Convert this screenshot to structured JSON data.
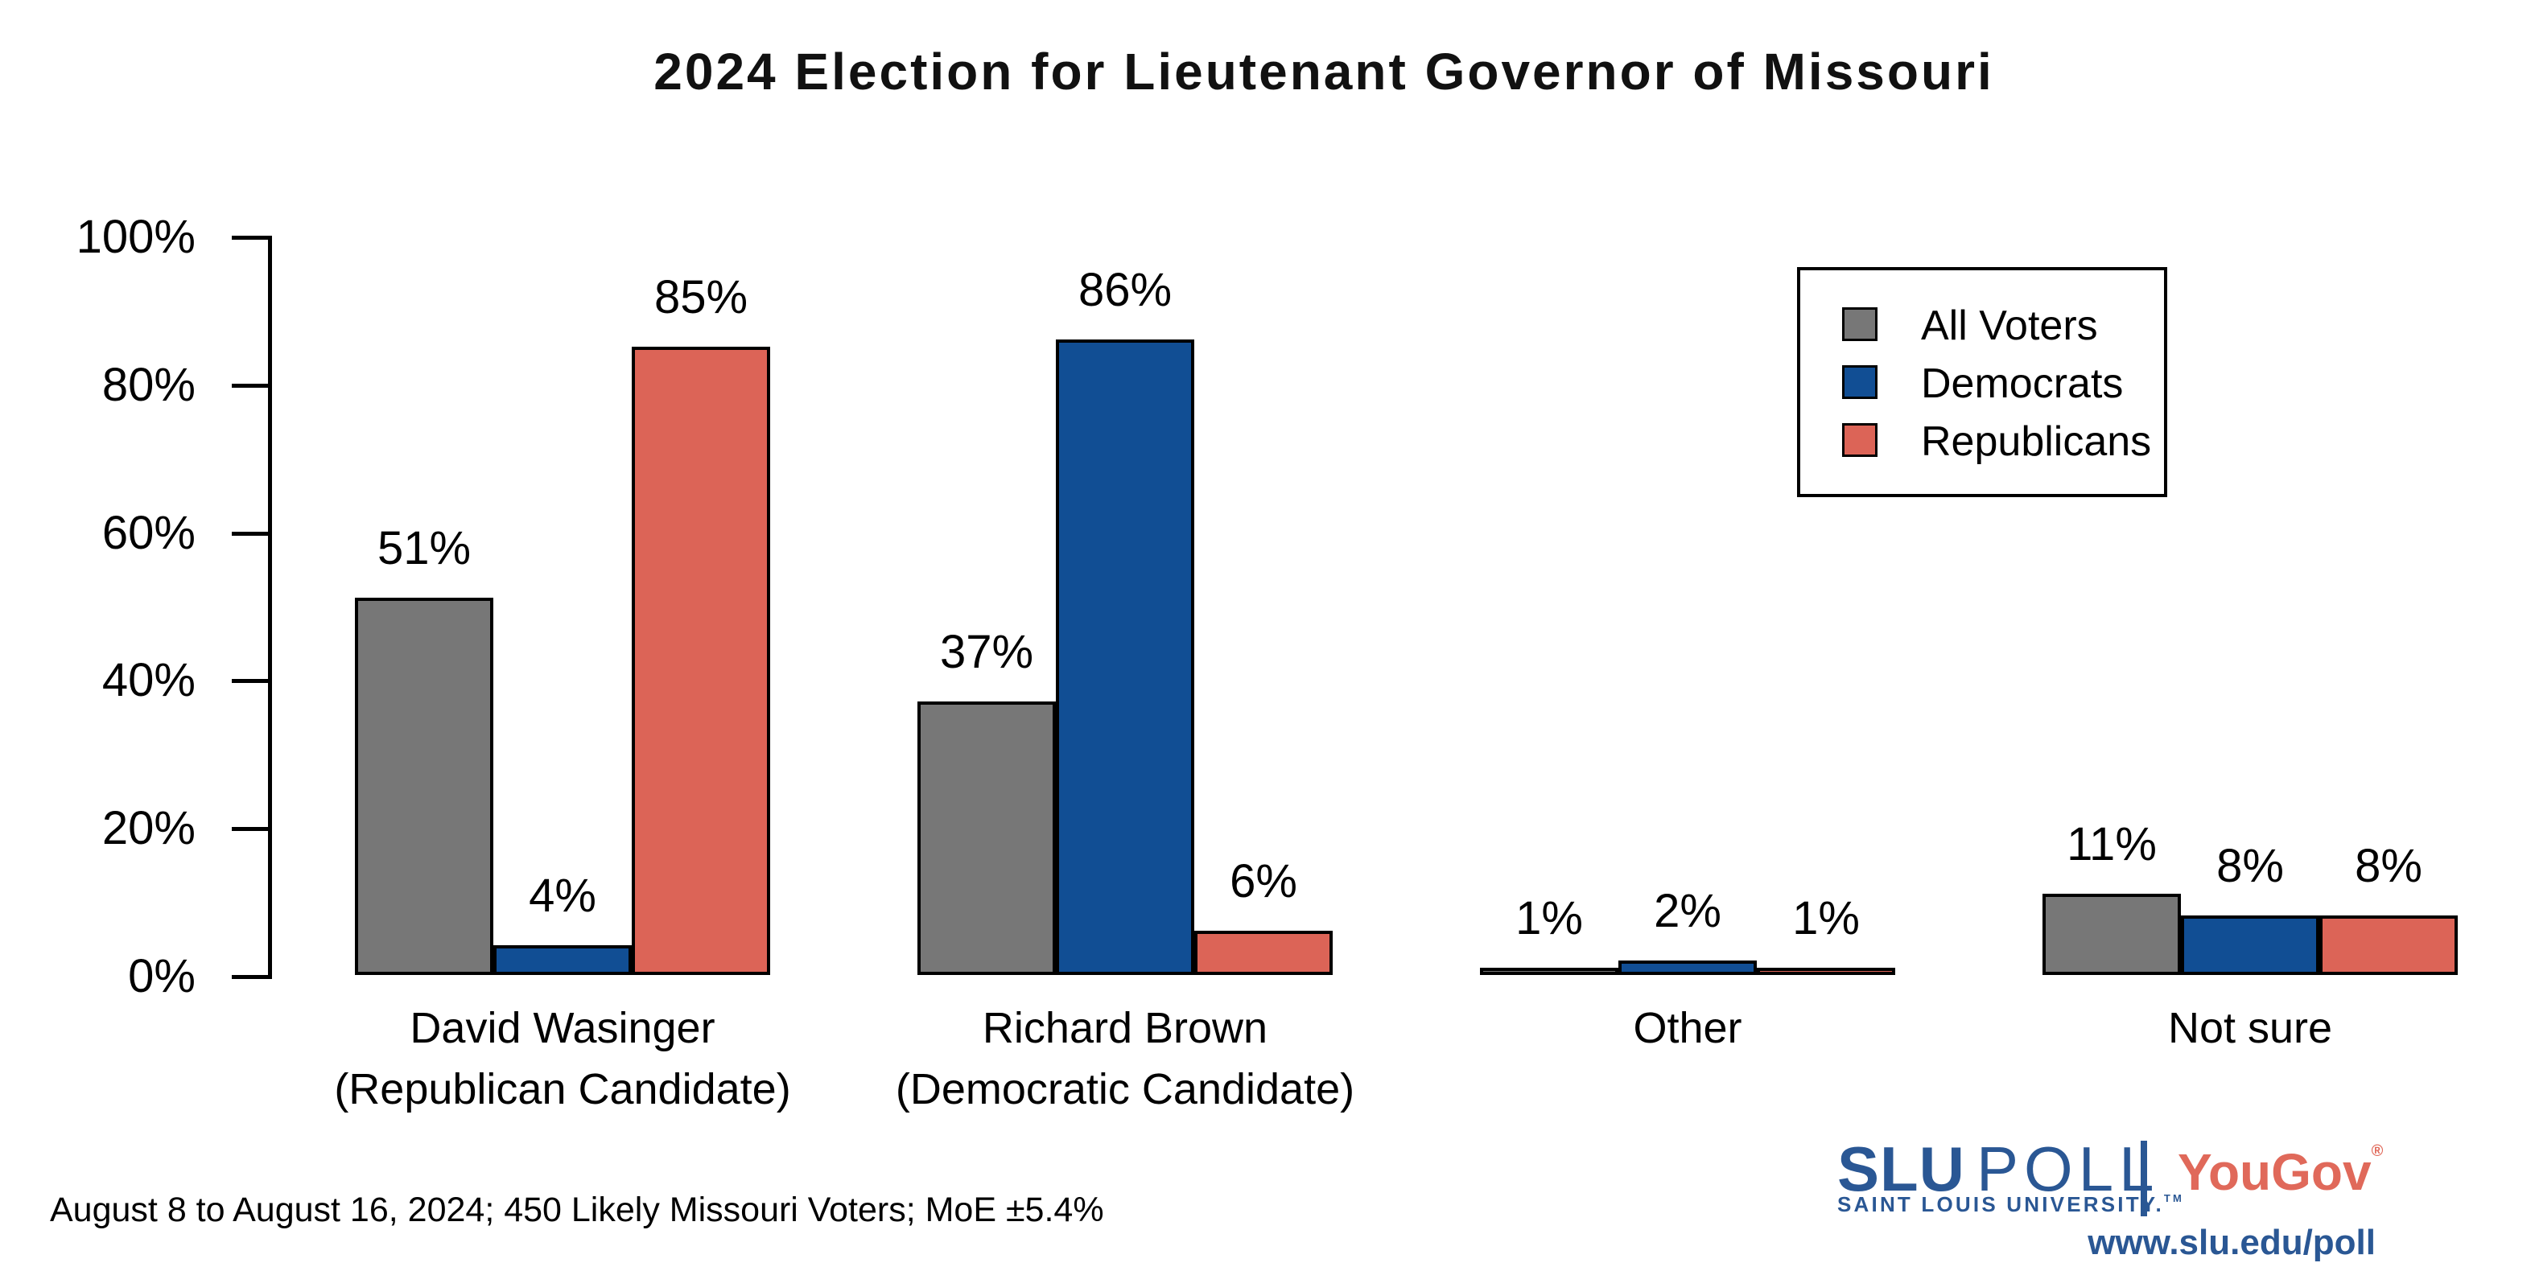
{
  "title": "2024 Election for Lieutenant Governor of Missouri",
  "footnote": "August 8 to August 16, 2024; 450 Likely Missouri Voters; MoE ±5.4%",
  "branding": {
    "slu": "SLU",
    "poll": "POLL",
    "subtitle": "SAINT LOUIS UNIVERSITY.",
    "trademark": "TM",
    "partner": "YouGov",
    "registered": "®",
    "url": "www.slu.edu/poll",
    "slu_blue": "#2A5794",
    "yougov_red": "#E0695A"
  },
  "legend": {
    "position": "top-right",
    "items": [
      {
        "label": "All Voters",
        "color": "#777777"
      },
      {
        "label": "Democrats",
        "color": "#114E94"
      },
      {
        "label": "Republicans",
        "color": "#DC6457"
      }
    ]
  },
  "chart_data": {
    "type": "bar",
    "title": "2024 Election for Lieutenant Governor of Missouri",
    "categories": [
      "David Wasinger (Republican Candidate)",
      "Richard Brown (Democratic Candidate)",
      "Other",
      "Not sure"
    ],
    "category_lines": [
      [
        "David Wasinger",
        "(Republican Candidate)"
      ],
      [
        "Richard Brown",
        "(Democratic Candidate)"
      ],
      [
        "Other"
      ],
      [
        "Not sure"
      ]
    ],
    "series": [
      {
        "name": "All Voters",
        "color": "#777777",
        "values": [
          51,
          37,
          1,
          11
        ]
      },
      {
        "name": "Democrats",
        "color": "#114E94",
        "values": [
          4,
          86,
          2,
          8
        ]
      },
      {
        "name": "Republicans",
        "color": "#DC6457",
        "values": [
          85,
          6,
          1,
          8
        ]
      }
    ],
    "value_labels": [
      [
        "51%",
        "37%",
        "1%",
        "11%"
      ],
      [
        "4%",
        "86%",
        "2%",
        "8%"
      ],
      [
        "85%",
        "6%",
        "1%",
        "8%"
      ]
    ],
    "value_suffix": "%",
    "xlabel": "",
    "ylabel": "",
    "ylim": [
      0,
      100
    ],
    "yticks": [
      {
        "value": 0,
        "label": "0%"
      },
      {
        "value": 20,
        "label": "20%"
      },
      {
        "value": 40,
        "label": "40%"
      },
      {
        "value": 60,
        "label": "60%"
      },
      {
        "value": 80,
        "label": "80%"
      },
      {
        "value": 100,
        "label": "100%"
      }
    ],
    "grid": false,
    "legend_position": "top-right",
    "bar_labels": true
  }
}
